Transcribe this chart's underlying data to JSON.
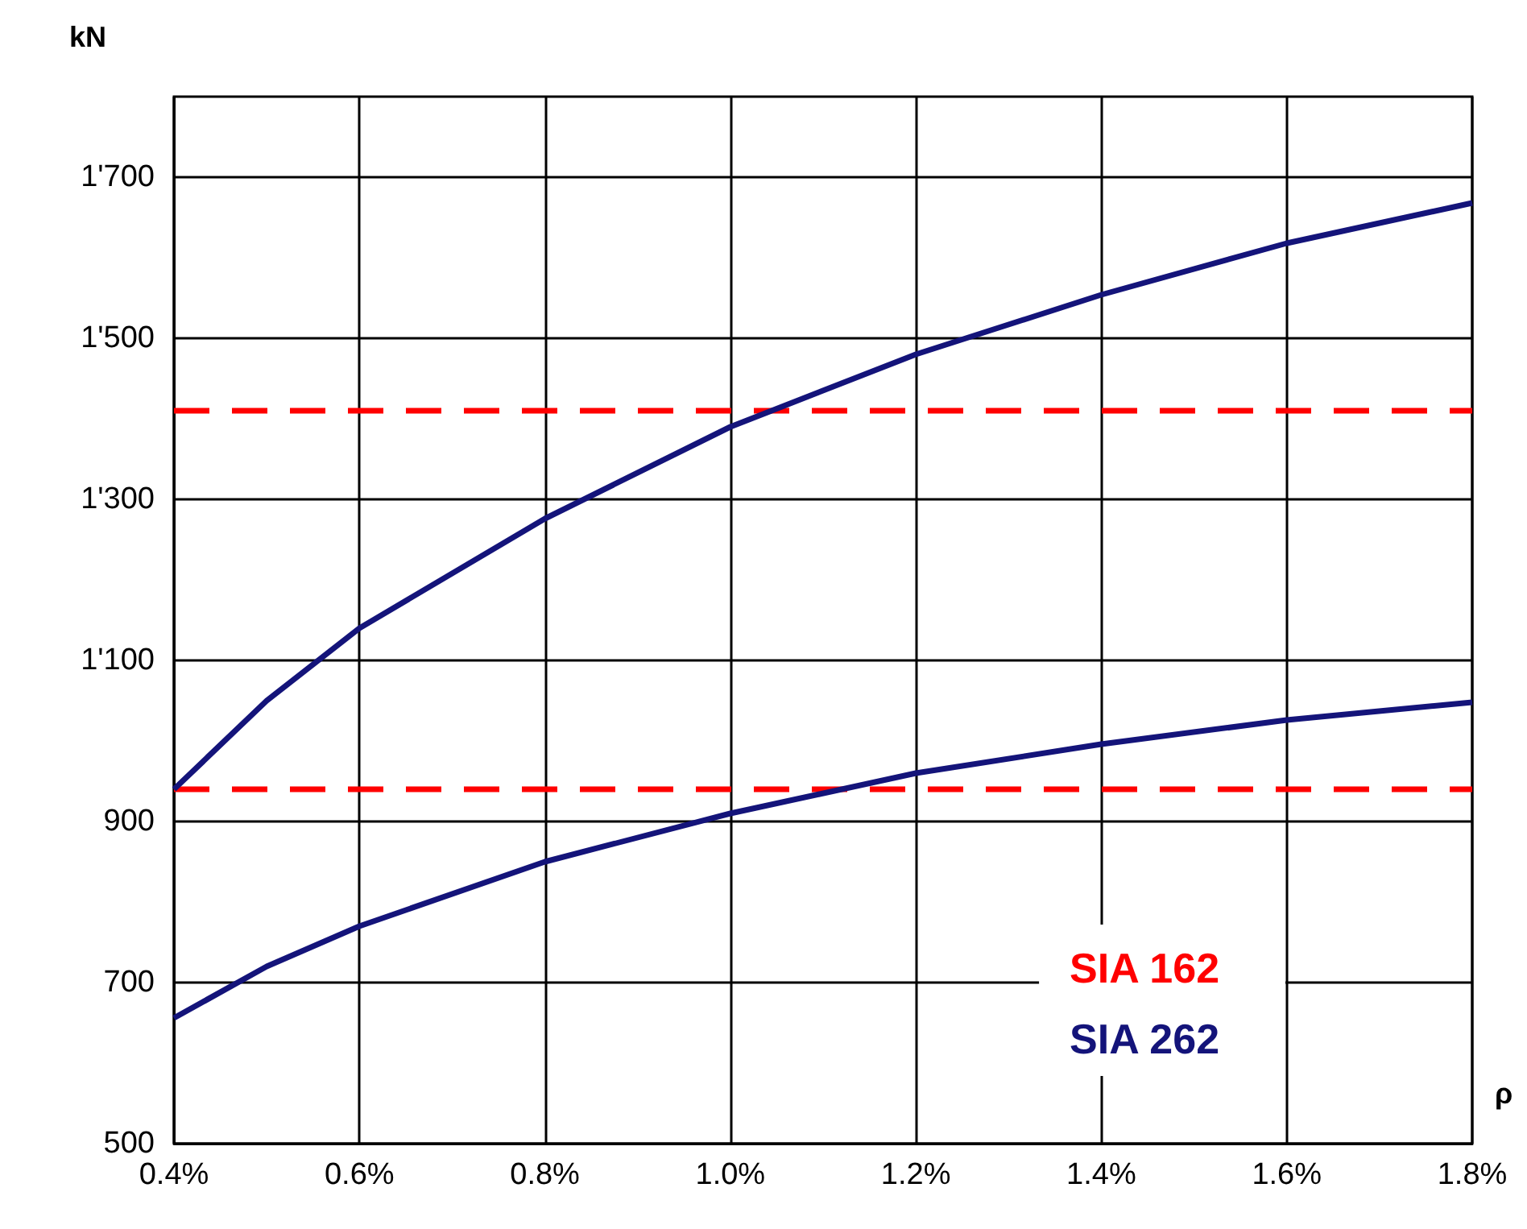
{
  "chart_data": {
    "type": "line",
    "xlabel": "ρ",
    "ylabel": "kN",
    "xlim": [
      0.4,
      1.8
    ],
    "xticks": [
      {
        "value": 0.4,
        "label": "0.4%"
      },
      {
        "value": 0.6,
        "label": "0.6%"
      },
      {
        "value": 0.8,
        "label": "0.8%"
      },
      {
        "value": 1.0,
        "label": "1.0%"
      },
      {
        "value": 1.2,
        "label": "1.2%"
      },
      {
        "value": 1.4,
        "label": "1.4%"
      },
      {
        "value": 1.6,
        "label": "1.6%"
      },
      {
        "value": 1.8,
        "label": "1.8%"
      }
    ],
    "ylim": [
      500,
      1800
    ],
    "yticks": [
      500,
      700,
      900,
      {
        "value": 1100,
        "label": "1'100"
      },
      {
        "value": 1300,
        "label": "1'300"
      },
      {
        "value": 1500,
        "label": "1'500"
      },
      {
        "value": 1700,
        "label": "1'700"
      }
    ],
    "grid": true,
    "legend": "bottom right",
    "marker": "none",
    "series": [
      {
        "name": "SIA 162",
        "color": "#ff0000",
        "line_style": "dashed",
        "x": [
          0.4,
          1.8
        ],
        "values": [
          1410,
          1410
        ]
      },
      {
        "color": "#ff0000",
        "line_style": "dashed",
        "x": [
          0.4,
          1.8
        ],
        "values": [
          940,
          940
        ]
      },
      {
        "name": "SIA 262",
        "color": "#14147a",
        "line_style": "solid",
        "x": [
          0.4,
          0.5,
          0.6,
          0.8,
          1.0,
          1.2,
          1.4,
          1.6,
          1.8
        ],
        "values": [
          940,
          1050,
          1140,
          1276,
          1390,
          1480,
          1554,
          1618,
          1668
        ]
      },
      {
        "color": "#14147a",
        "line_style": "solid",
        "x": [
          0.4,
          0.5,
          0.6,
          0.8,
          1.0,
          1.2,
          1.4,
          1.6,
          1.8
        ],
        "values": [
          656,
          720,
          770,
          850,
          910,
          960,
          996,
          1026,
          1048
        ]
      }
    ]
  }
}
